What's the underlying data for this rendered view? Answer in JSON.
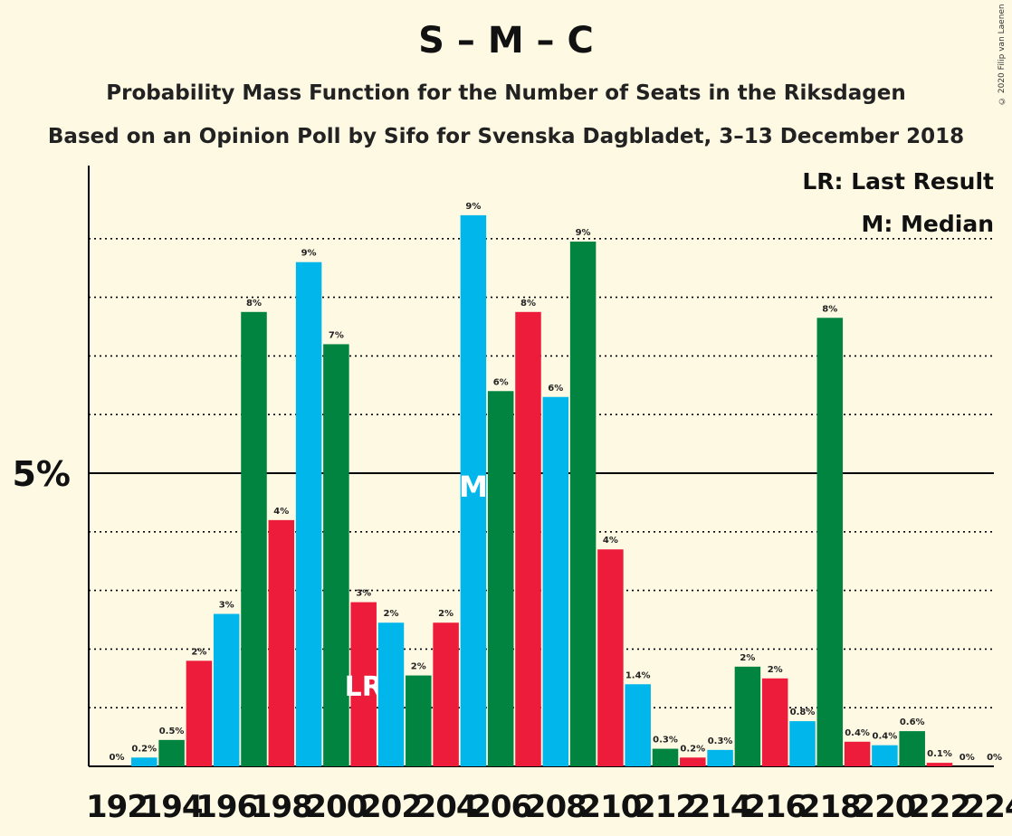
{
  "title": "S – M – C",
  "subtitle1": "Probability Mass Function for the Number of Seats in the Riksdagen",
  "subtitle2": "Based on an Opinion Poll by Sifo for Svenska Dagbladet, 3–13 December 2018",
  "copyright": "© 2020 Filip van Laenen",
  "legend": {
    "lr": "LR: Last Result",
    "m": "M: Median"
  },
  "colors": {
    "blue": "#00b6eb",
    "green": "#00843f",
    "red": "#ed1c3a",
    "background": "#fef9e3"
  },
  "chart_data": {
    "type": "bar",
    "y_tick_label": "5%",
    "y_tick_value": 5,
    "ylim": [
      0,
      10.5
    ],
    "categories": [
      192,
      193,
      194,
      195,
      196,
      197,
      198,
      199,
      200,
      201,
      202,
      203,
      204,
      205,
      206,
      207,
      208,
      209,
      210,
      211,
      212,
      213,
      214,
      215,
      216,
      217,
      218,
      219,
      220,
      221,
      222,
      223,
      224
    ],
    "x_tick_labels": [
      "192",
      "194",
      "196",
      "198",
      "200",
      "202",
      "204",
      "206",
      "208",
      "210",
      "212",
      "214",
      "216",
      "218",
      "220",
      "222",
      "224"
    ],
    "values": [
      0,
      0.15,
      0.45,
      1.8,
      2.6,
      7.75,
      4.2,
      8.6,
      7.2,
      2.8,
      2.45,
      1.55,
      2.45,
      9.4,
      6.4,
      7.75,
      6.3,
      8.95,
      3.7,
      1.4,
      0.3,
      0.15,
      0.28,
      1.7,
      1.5,
      0.77,
      7.65,
      0.42,
      0.36,
      0.6,
      0.06,
      0,
      0
    ],
    "labels": [
      "0%",
      "0.2%",
      "0.5%",
      "2%",
      "3%",
      "8%",
      "4%",
      "9%",
      "7%",
      "3%",
      "2%",
      "2%",
      "2%",
      "9%",
      "6%",
      "8%",
      "6%",
      "9%",
      "4%",
      "1.4%",
      "0.3%",
      "0.2%",
      "0.3%",
      "2%",
      "2%",
      "0.8%",
      "8%",
      "0.4%",
      "0.4%",
      "0.6%",
      "0.1%",
      "0%",
      "0%"
    ],
    "bar_colors": [
      "blue",
      "blue",
      "green",
      "red",
      "blue",
      "green",
      "red",
      "blue",
      "green",
      "red",
      "blue",
      "green",
      "red",
      "blue",
      "green",
      "red",
      "blue",
      "green",
      "red",
      "blue",
      "green",
      "red",
      "blue",
      "green",
      "red",
      "blue",
      "green",
      "red",
      "blue",
      "green",
      "red",
      "blue",
      "green"
    ],
    "last_result": {
      "seat": 201,
      "label": "LR"
    },
    "median": {
      "seat": 205,
      "label": "M"
    }
  }
}
